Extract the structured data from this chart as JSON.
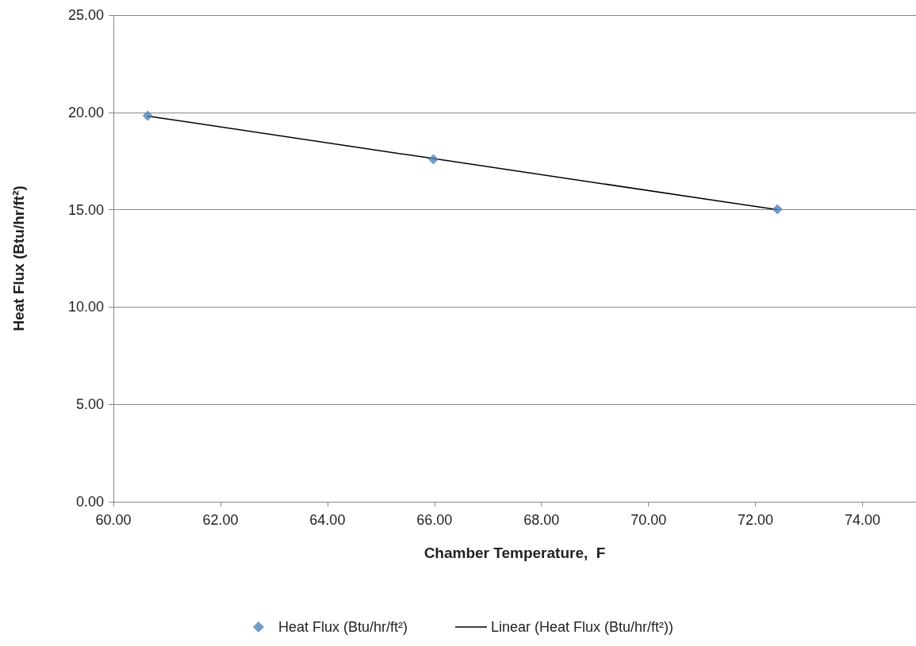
{
  "chart_data": {
    "type": "scatter",
    "xlabel": "Chamber Temperature,  F",
    "ylabel": "Heat Flux (Btu/hr/ft²)",
    "series": [
      {
        "name": "Heat Flux (Btu/hr/ft²)",
        "color": "#4f81bd",
        "marker": "diamond",
        "x": [
          60.64,
          65.98,
          72.41
        ],
        "values": [
          19.83,
          17.59,
          15.02
        ]
      },
      {
        "name": "Linear (Heat Flux (Btu/hr/ft²))",
        "type": "line",
        "color": "#000000",
        "marker": "none",
        "line_style": "solid",
        "x": [
          60.64,
          72.41
        ],
        "values": [
          19.81,
          15.0
        ]
      }
    ],
    "xlim": [
      60,
      75
    ],
    "xticks": [
      {
        "value": 60,
        "label": "60.00"
      },
      {
        "value": 62,
        "label": "62.00"
      },
      {
        "value": 64,
        "label": "64.00"
      },
      {
        "value": 66,
        "label": "66.00"
      },
      {
        "value": 68,
        "label": "68.00"
      },
      {
        "value": 70,
        "label": "70.00"
      },
      {
        "value": 72,
        "label": "72.00"
      },
      {
        "value": 74,
        "label": "74.00"
      }
    ],
    "ylim": [
      0,
      25
    ],
    "yticks": [
      {
        "value": 0,
        "label": "0.00"
      },
      {
        "value": 5,
        "label": "5.00"
      },
      {
        "value": 10,
        "label": "10.00"
      },
      {
        "value": 15,
        "label": "15.00"
      },
      {
        "value": 20,
        "label": "20.00"
      },
      {
        "value": 25,
        "label": "25.00"
      }
    ],
    "grid": "y",
    "legend": "bottom"
  }
}
